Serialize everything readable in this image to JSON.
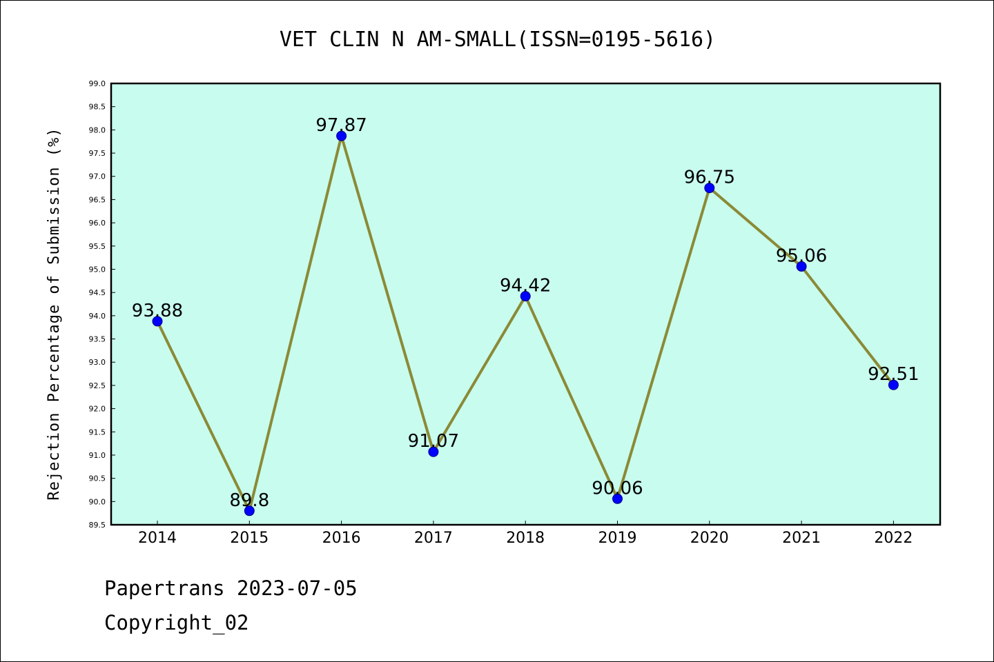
{
  "chart_data": {
    "type": "line",
    "title": "VET CLIN N AM-SMALL(ISSN=0195-5616)",
    "xlabel": "",
    "ylabel": "Rejection Percentage of Submission (%)",
    "categories": [
      "2014",
      "2015",
      "2016",
      "2017",
      "2018",
      "2019",
      "2020",
      "2021",
      "2022"
    ],
    "series": [
      {
        "values": [
          93.88,
          89.8,
          97.87,
          91.07,
          94.42,
          90.06,
          96.75,
          95.06,
          92.51
        ],
        "labels": [
          "93.88",
          "89.8",
          "97.87",
          "91.07",
          "94.42",
          "90.06",
          "96.75",
          "95.06",
          "92.51"
        ]
      }
    ],
    "ylim": [
      89.5,
      99.0
    ],
    "yticks": [
      "89.5",
      "90.0",
      "90.5",
      "91.0",
      "91.5",
      "92.0",
      "92.5",
      "93.0",
      "93.5",
      "94.0",
      "94.5",
      "95.0",
      "95.5",
      "96.0",
      "96.5",
      "97.0",
      "97.5",
      "98.0",
      "98.5",
      "99.0"
    ],
    "grid": false,
    "colors": {
      "plot_background": "#c8fcee",
      "line": "#8b8a37",
      "marker": "#0000ff"
    }
  },
  "footer": {
    "line1": "Papertrans 2023-07-05",
    "line2": "Copyright_02"
  }
}
